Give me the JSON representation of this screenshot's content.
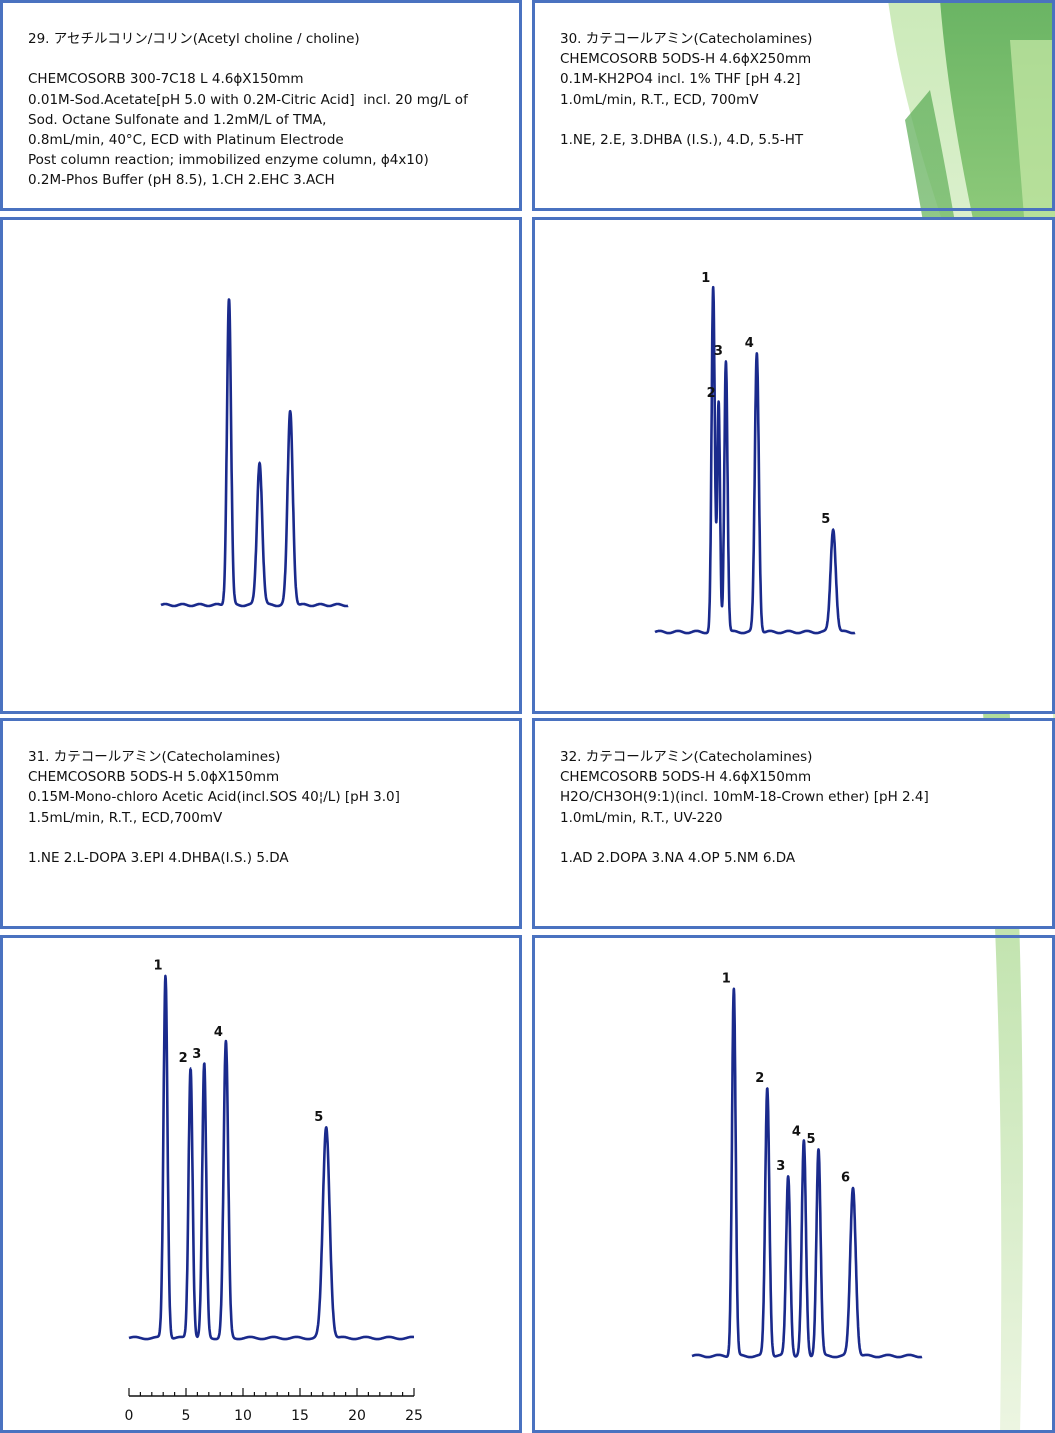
{
  "panels": {
    "p29": {
      "title": "29. アセチルコリン/コリン(Acetyl choline / choline)",
      "lines": [
        "",
        "CHEMCOSORB 300-7C18 L 4.6ϕX150mm",
        "0.01M-Sod.Acetate[pH 5.0 with 0.2M-Citric Acid]  incl. 20 mg/L of",
        "Sod. Octane Sulfonate and 1.2mM/L of TMA,",
        "0.8mL/min, 40°C, ECD with Platinum Electrode",
        "Post column reaction; immobilized enzyme column, ϕ4x10)",
        "0.2M-Phos Buffer (pH 8.5), 1.CH 2.EHC 3.ACH"
      ]
    },
    "p30": {
      "title": "30. カテコールアミン(Catecholamines)",
      "lines": [
        "CHEMCOSORB 5ODS-H 4.6ϕX250mm",
        "0.1M-KH2PO4 incl. 1% THF [pH 4.2]",
        "1.0mL/min, R.T., ECD, 700mV",
        "",
        "1.NE, 2.E, 3.DHBA (I.S.), 4.D, 5.5-HT"
      ]
    },
    "p31": {
      "title": "31. カテコールアミン(Catecholamines)",
      "lines": [
        "CHEMCOSORB 5ODS-H 5.0ϕX150mm",
        "0.15M-Mono-chloro Acetic Acid(incl.SOS 40¦/L) [pH 3.0]",
        "1.5mL/min, R.T., ECD,700mV",
        "",
        "1.NE 2.L-DOPA 3.EPI 4.DHBA(I.S.) 5.DA"
      ]
    },
    "p32": {
      "title": "32. カテコールアミン(Catecholamines)",
      "lines": [
        "CHEMCOSORB 5ODS-H 4.6ϕX150mm",
        "H2O/CH3OH(9:1)(incl. 10mM-18-Crown ether) [pH 2.4]",
        "1.0mL/min, R.T., UV-220",
        "",
        "1.AD 2.DOPA 3.NA 4.OP 5.NM 6.DA"
      ]
    }
  },
  "colors": {
    "border": "#4a72c0",
    "trace": "#1a2a8c",
    "axis": "#111111",
    "deco_green": "#7cc36a"
  },
  "chart_data": [
    {
      "id": "chrom29",
      "type": "line",
      "xlim": [
        0,
        22
      ],
      "ylim": [
        -5,
        100
      ],
      "peaks": [
        {
          "label": "",
          "rt": 8.0,
          "height": 90,
          "width": 0.11
        },
        {
          "label": "",
          "rt": 11.6,
          "height": 42,
          "width": 0.14
        },
        {
          "label": "",
          "rt": 15.2,
          "height": 57,
          "width": 0.14
        }
      ]
    },
    {
      "id": "chrom30",
      "type": "line",
      "xlim": [
        0,
        22
      ],
      "ylim": [
        -10,
        100
      ],
      "peaks": [
        {
          "label": "1",
          "rt": 6.4,
          "height": 90,
          "width": 0.08
        },
        {
          "label": "2",
          "rt": 7.0,
          "height": 60,
          "width": 0.07
        },
        {
          "label": "3",
          "rt": 7.8,
          "height": 71,
          "width": 0.08
        },
        {
          "label": "4",
          "rt": 11.2,
          "height": 73,
          "width": 0.1
        },
        {
          "label": "5",
          "rt": 19.6,
          "height": 27,
          "width": 0.13
        }
      ]
    },
    {
      "id": "chrom31",
      "type": "line",
      "xlim": [
        0,
        25
      ],
      "ylim": [
        -10,
        100
      ],
      "x_ticks": [
        0,
        5,
        10,
        15,
        20,
        25
      ],
      "peaks": [
        {
          "label": "1",
          "rt": 3.2,
          "height": 98,
          "width": 0.07
        },
        {
          "label": "2",
          "rt": 5.4,
          "height": 73,
          "width": 0.07
        },
        {
          "label": "3",
          "rt": 6.6,
          "height": 74,
          "width": 0.07
        },
        {
          "label": "4",
          "rt": 8.5,
          "height": 80,
          "width": 0.08
        },
        {
          "label": "5",
          "rt": 17.3,
          "height": 57,
          "width": 0.12
        }
      ]
    },
    {
      "id": "chrom32",
      "type": "line",
      "xlim": [
        0,
        22
      ],
      "ylim": [
        -5,
        100
      ],
      "peaks": [
        {
          "label": "1",
          "rt": 4.0,
          "height": 96,
          "width": 0.08
        },
        {
          "label": "2",
          "rt": 7.2,
          "height": 70,
          "width": 0.09
        },
        {
          "label": "3",
          "rt": 9.2,
          "height": 47,
          "width": 0.09
        },
        {
          "label": "4",
          "rt": 10.7,
          "height": 56,
          "width": 0.09
        },
        {
          "label": "5",
          "rt": 12.1,
          "height": 54,
          "width": 0.09
        },
        {
          "label": "6",
          "rt": 15.4,
          "height": 44,
          "width": 0.12
        }
      ]
    }
  ]
}
